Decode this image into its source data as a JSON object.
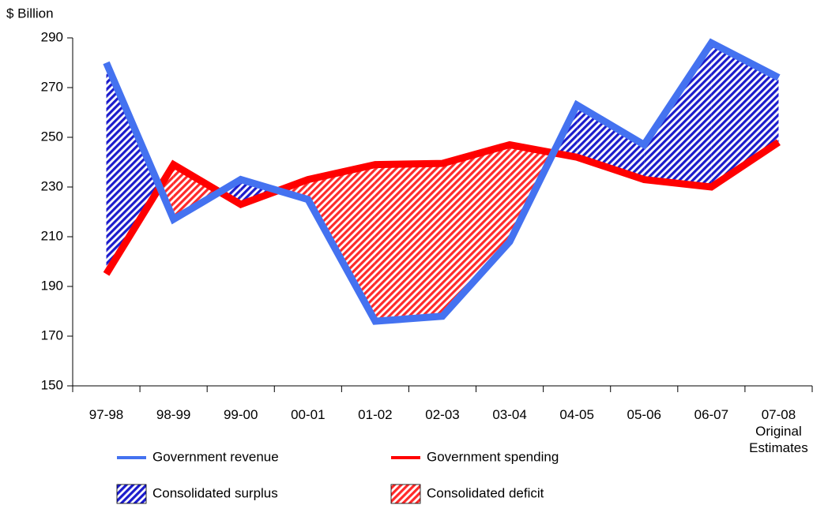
{
  "chart_data": {
    "type": "line",
    "y_label": "$ Billion",
    "categories": [
      "97-98",
      "98-99",
      "99-00",
      "00-01",
      "01-02",
      "02-03",
      "03-04",
      "04-05",
      "05-06",
      "06-07",
      "07-08\nOriginal\nEstimates"
    ],
    "series": [
      {
        "name": "Government revenue",
        "color": "#4472f0",
        "values": [
          280,
          217,
          233,
          225,
          176,
          178,
          208,
          263,
          247,
          288,
          274
        ]
      },
      {
        "name": "Government spending",
        "color": "#ff0000",
        "values": [
          195,
          239,
          223,
          233,
          239,
          239.5,
          247,
          242,
          233,
          230,
          248
        ]
      }
    ],
    "fills": [
      {
        "name": "Consolidated surplus",
        "color": "#1c1ccc"
      },
      {
        "name": "Consolidated deficit",
        "color": "#ff2a2a"
      }
    ],
    "ylim": [
      150,
      290
    ],
    "yticks": [
      150,
      170,
      190,
      210,
      230,
      250,
      270,
      290
    ]
  }
}
